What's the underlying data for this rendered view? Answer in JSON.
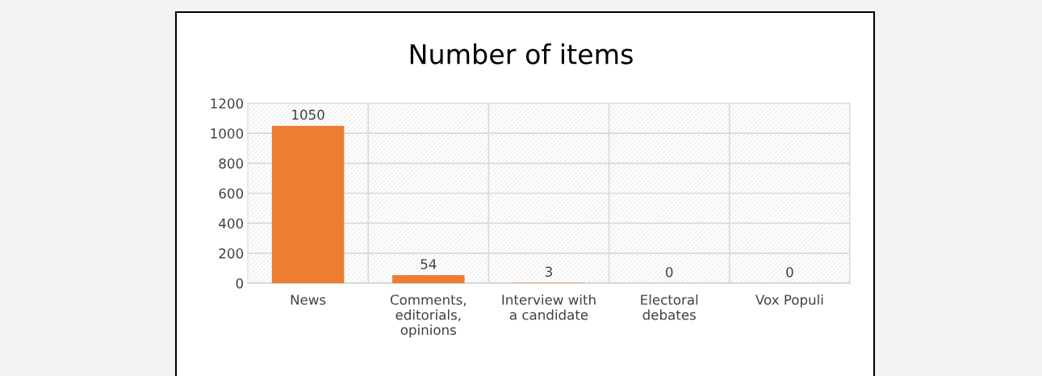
{
  "chart_data": {
    "type": "bar",
    "title": "Number of items",
    "categories": [
      "News",
      "Comments,\neditorials,\nopinions",
      "Interview with\na candidate",
      "Electoral\ndebates",
      "Vox Populi"
    ],
    "values": [
      1050,
      54,
      3,
      0,
      0
    ],
    "color": "#ed7d31",
    "ylim": [
      0,
      1200
    ],
    "yticks": [
      0,
      200,
      400,
      600,
      800,
      1000,
      1200
    ],
    "grid": true,
    "data_labels": true
  }
}
